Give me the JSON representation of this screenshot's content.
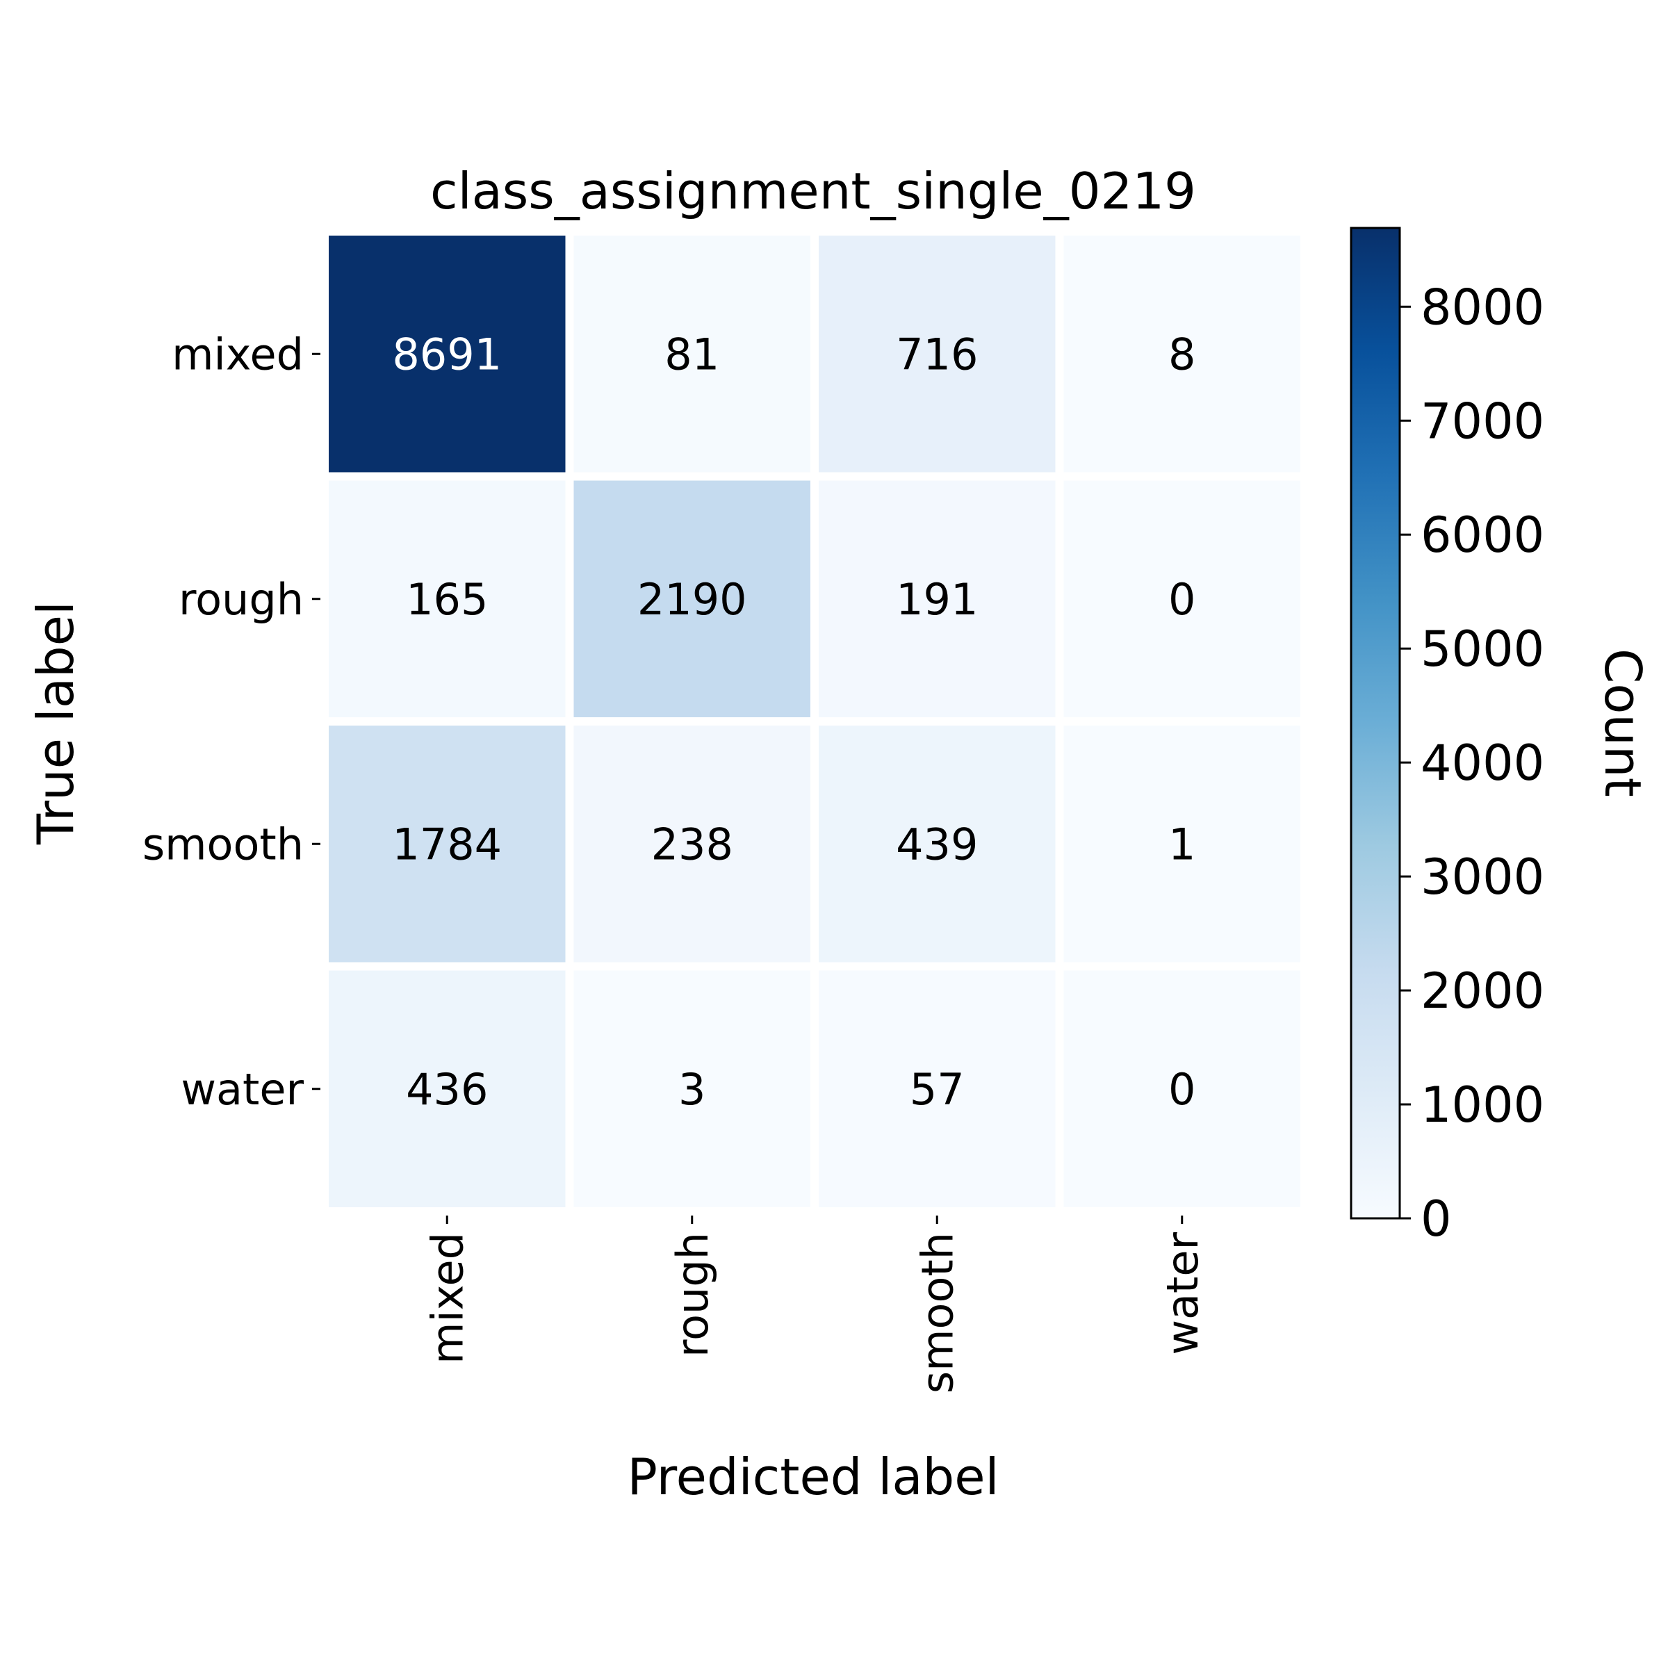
{
  "chart_data": {
    "type": "heatmap",
    "title": "class_assignment_single_0219",
    "xlabel": "Predicted label",
    "ylabel": "True label",
    "x_categories": [
      "mixed",
      "rough",
      "smooth",
      "water"
    ],
    "y_categories": [
      "mixed",
      "rough",
      "smooth",
      "water"
    ],
    "values": [
      [
        8691,
        81,
        716,
        8
      ],
      [
        165,
        2190,
        191,
        0
      ],
      [
        1784,
        238,
        439,
        1
      ],
      [
        436,
        3,
        57,
        0
      ]
    ],
    "colorbar": {
      "label": "Count",
      "colormap": "Blues",
      "range": [
        0,
        8691
      ],
      "ticks": [
        0,
        1000,
        2000,
        3000,
        4000,
        5000,
        6000,
        7000,
        8000
      ]
    },
    "colors": {
      "low": "#f7fbff",
      "high": "#08306b",
      "cell_border": "#ffffff",
      "text_dark": "#000000",
      "text_light": "#ffffff"
    }
  }
}
